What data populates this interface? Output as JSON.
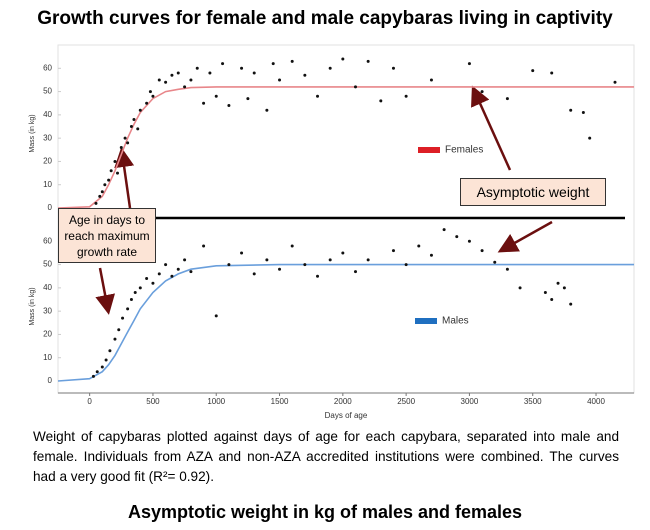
{
  "title": "Growth curves for female and male capybaras living in captivity",
  "annotations": [
    "Age in days to reach maximum growth rate",
    "Asymptotic weight"
  ],
  "caption": "Weight of capybaras plotted against days of age for each capybara, separated into male and female. Individuals from AZA and non-AZA accredited institutions were combined. The curves had a very good fit (R²= 0.92).",
  "footer_title": "Asymptotic weight in kg of males and females",
  "chart_data": [
    {
      "type": "scatter",
      "ylabel": "Mass (in kg)",
      "xlim": [
        -250,
        4300
      ],
      "ylim": [
        -3,
        67
      ],
      "yticks": [
        0,
        10,
        20,
        30,
        40,
        50,
        60
      ],
      "legend_label": "Females",
      "legend_color": "#dd1f26",
      "point_color": "#111111",
      "x": [
        50,
        80,
        100,
        120,
        150,
        170,
        200,
        220,
        250,
        280,
        300,
        330,
        350,
        380,
        400,
        450,
        480,
        500,
        550,
        600,
        650,
        700,
        750,
        800,
        850,
        900,
        950,
        1000,
        1050,
        1100,
        1200,
        1250,
        1300,
        1400,
        1450,
        1500,
        1600,
        1700,
        1800,
        1900,
        2000,
        2100,
        2200,
        2300,
        2400,
        2500,
        2700,
        3000,
        3100,
        3300,
        3500,
        3650,
        3800,
        3900,
        3950,
        4150
      ],
      "values": [
        2,
        5,
        7,
        10,
        12,
        16,
        20,
        15,
        26,
        30,
        28,
        35,
        38,
        34,
        42,
        45,
        50,
        48,
        55,
        54,
        57,
        58,
        52,
        55,
        60,
        45,
        58,
        48,
        62,
        44,
        60,
        47,
        58,
        42,
        62,
        55,
        63,
        57,
        48,
        60,
        64,
        52,
        63,
        46,
        60,
        48,
        55,
        62,
        50,
        47,
        59,
        58,
        42,
        41,
        30,
        54
      ],
      "curve": {
        "color": "#e8868a",
        "x": [
          -250,
          0,
          100,
          150,
          200,
          250,
          300,
          350,
          400,
          500,
          600,
          700,
          800,
          1000,
          1500,
          2000,
          4300
        ],
        "values": [
          0,
          0.5,
          5,
          10,
          16,
          23,
          30,
          36,
          41,
          47,
          50,
          51,
          51.7,
          52,
          52,
          52,
          52
        ]
      }
    },
    {
      "type": "scatter",
      "ylabel": "Mass (in kg)",
      "xlabel": "Days of age",
      "xlim": [
        -250,
        4300
      ],
      "xticks": [
        0,
        500,
        1000,
        1500,
        2000,
        2500,
        3000,
        3500,
        4000
      ],
      "ylim": [
        -3,
        67
      ],
      "yticks": [
        0,
        10,
        20,
        30,
        40,
        50,
        60
      ],
      "legend_label": "Males",
      "legend_color": "#1f6fc0",
      "point_color": "#111111",
      "x": [
        30,
        60,
        100,
        130,
        160,
        200,
        230,
        260,
        300,
        330,
        360,
        400,
        450,
        500,
        550,
        600,
        650,
        700,
        750,
        800,
        900,
        1000,
        1100,
        1200,
        1300,
        1400,
        1500,
        1600,
        1700,
        1800,
        1900,
        2000,
        2100,
        2200,
        2400,
        2500,
        2600,
        2700,
        2800,
        2900,
        3000,
        3100,
        3200,
        3300,
        3400,
        3600,
        3650,
        3700,
        3750,
        3800
      ],
      "values": [
        2,
        4,
        6,
        9,
        13,
        18,
        22,
        27,
        31,
        35,
        38,
        40,
        44,
        42,
        46,
        50,
        45,
        48,
        52,
        47,
        58,
        28,
        50,
        55,
        46,
        52,
        48,
        58,
        50,
        45,
        52,
        55,
        47,
        52,
        56,
        50,
        58,
        54,
        65,
        62,
        60,
        56,
        51,
        48,
        40,
        38,
        35,
        42,
        40,
        33
      ],
      "curve": {
        "color": "#6a9fdc",
        "x": [
          -250,
          0,
          100,
          150,
          200,
          250,
          300,
          350,
          400,
          500,
          600,
          700,
          800,
          1000,
          1500,
          2000,
          4300
        ],
        "values": [
          0,
          1,
          4,
          7,
          11,
          16,
          21,
          26,
          31,
          38,
          43,
          46,
          48,
          49.5,
          50,
          50,
          50
        ]
      }
    }
  ]
}
